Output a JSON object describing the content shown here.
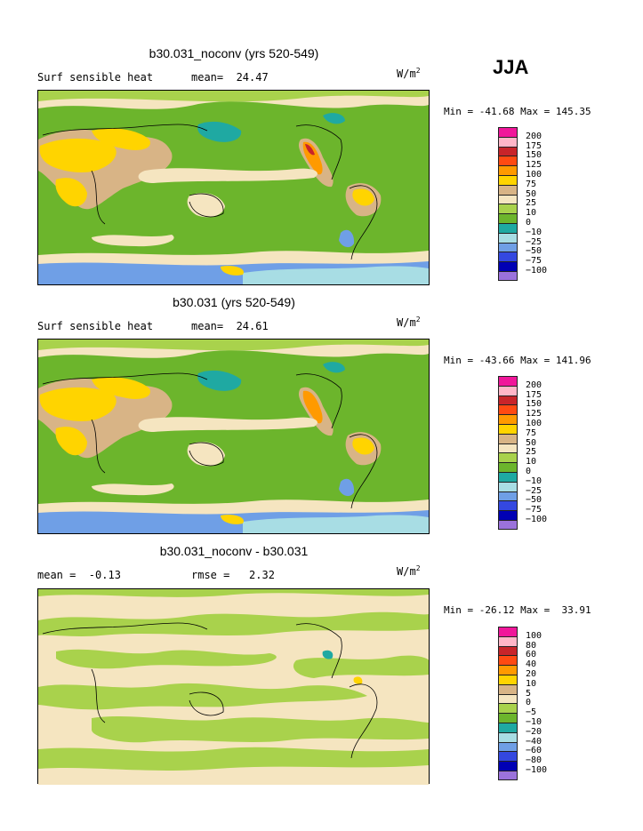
{
  "season": "JJA",
  "units_base": "W/m",
  "units_exp": "2",
  "panels": [
    {
      "title": "b30.031_noconv (yrs 520-549)",
      "left_text": "Surf sensible heat",
      "right_text": "mean=  24.47",
      "minmax": "Min = -41.68 Max = 145.35",
      "colorbar": {
        "colors": [
          "#f0169a",
          "#ffb6c8",
          "#c8242a",
          "#ff4a12",
          "#ff9a00",
          "#ffd400",
          "#d8b486",
          "#f5e5c0",
          "#a9d24c",
          "#6cb52c",
          "#1fa9a2",
          "#a8dde4",
          "#6f9fe6",
          "#3448e0",
          "#0000b4",
          "#9b72dc"
        ],
        "labels": [
          "200",
          "175",
          "150",
          "125",
          "100",
          "75",
          "50",
          "25",
          "10",
          "0",
          "-10",
          "-25",
          "-50",
          "-75",
          "-100"
        ]
      }
    },
    {
      "title": "b30.031 (yrs 520-549)",
      "left_text": "Surf sensible heat",
      "right_text": "mean=  24.61",
      "minmax": "Min = -43.66 Max = 141.96",
      "colorbar": {
        "colors": [
          "#f0169a",
          "#ffb6c8",
          "#c8242a",
          "#ff4a12",
          "#ff9a00",
          "#ffd400",
          "#d8b486",
          "#f5e5c0",
          "#a9d24c",
          "#6cb52c",
          "#1fa9a2",
          "#a8dde4",
          "#6f9fe6",
          "#3448e0",
          "#0000b4",
          "#9b72dc"
        ],
        "labels": [
          "200",
          "175",
          "150",
          "125",
          "100",
          "75",
          "50",
          "25",
          "10",
          "0",
          "-10",
          "-25",
          "-50",
          "-75",
          "-100"
        ]
      }
    },
    {
      "title": "b30.031_noconv - b30.031",
      "left_text": "mean =  -0.13",
      "right_text": "rmse =   2.32",
      "minmax": "Min = -26.12 Max =  33.91",
      "colorbar": {
        "colors": [
          "#f0169a",
          "#ffb6c8",
          "#c8242a",
          "#ff4a12",
          "#ff9a00",
          "#ffd400",
          "#d8b486",
          "#f5e5c0",
          "#a9d24c",
          "#6cb52c",
          "#1fa9a2",
          "#a8dde4",
          "#6f9fe6",
          "#3448e0",
          "#0000b4",
          "#9b72dc"
        ],
        "labels": [
          "100",
          "80",
          "60",
          "40",
          "20",
          "10",
          "5",
          "0",
          "-5",
          "-10",
          "-20",
          "-40",
          "-60",
          "-80",
          "-100"
        ]
      }
    }
  ],
  "chart_data": [
    {
      "type": "heatmap",
      "title": "b30.031_noconv (yrs 520-549)",
      "field": "Surf sensible heat",
      "mean": 24.47,
      "min": -41.68,
      "max": 145.35,
      "contour_levels": [
        -100,
        -75,
        -50,
        -25,
        -10,
        0,
        10,
        25,
        50,
        75,
        100,
        125,
        150,
        175,
        200
      ],
      "units": "W/m2"
    },
    {
      "type": "heatmap",
      "title": "b30.031 (yrs 520-549)",
      "field": "Surf sensible heat",
      "mean": 24.61,
      "min": -43.66,
      "max": 141.96,
      "contour_levels": [
        -100,
        -75,
        -50,
        -25,
        -10,
        0,
        10,
        25,
        50,
        75,
        100,
        125,
        150,
        175,
        200
      ],
      "units": "W/m2"
    },
    {
      "type": "heatmap",
      "title": "b30.031_noconv - b30.031",
      "mean": -0.13,
      "rmse": 2.32,
      "min": -26.12,
      "max": 33.91,
      "contour_levels": [
        -100,
        -80,
        -60,
        -40,
        -20,
        -10,
        -5,
        0,
        5,
        10,
        20,
        40,
        60,
        80,
        100
      ],
      "units": "W/m2"
    }
  ]
}
